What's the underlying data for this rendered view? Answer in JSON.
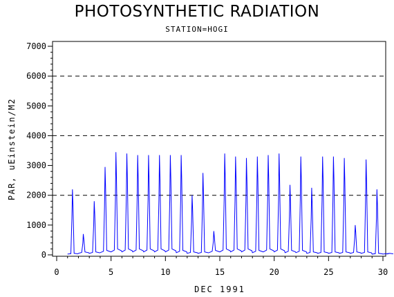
{
  "header": {
    "title": "PHOTOSYNTHETIC RADIATION",
    "subtitle": "STATION=HOGI"
  },
  "chart_data": {
    "type": "line",
    "title": "PHOTOSYNTHETIC RADIATION",
    "subtitle": "STATION=HOGI",
    "xlabel": "DEC 1991",
    "ylabel": "PAR, uEinstein/M2",
    "xlim": [
      0,
      30
    ],
    "ylim": [
      0,
      7000
    ],
    "xticks": [
      0,
      5,
      10,
      15,
      20,
      25,
      30
    ],
    "yticks": [
      0,
      1000,
      2000,
      3000,
      4000,
      5000,
      6000,
      7000
    ],
    "reference_lines": [
      2000,
      4000,
      6000
    ],
    "line_color": "#0000ff",
    "grid": false,
    "daily_peaks": {
      "day": [
        1,
        2,
        3,
        4,
        5,
        6,
        7,
        8,
        9,
        10,
        11,
        12,
        13,
        14,
        15,
        16,
        17,
        18,
        19,
        20,
        21,
        22,
        23,
        24,
        25,
        26,
        27,
        28,
        29,
        30
      ],
      "peak": [
        2200,
        700,
        1800,
        2950,
        3450,
        3400,
        3350,
        3350,
        3350,
        3350,
        3350,
        2000,
        2750,
        800,
        3400,
        3300,
        3250,
        3300,
        3350,
        3400,
        2350,
        3300,
        2250,
        3300,
        3300,
        3250,
        1000,
        3200,
        2200,
        50
      ],
      "night": [
        50,
        100,
        100,
        150,
        200,
        200,
        200,
        200,
        200,
        200,
        150,
        100,
        100,
        150,
        200,
        200,
        200,
        150,
        200,
        200,
        150,
        150,
        100,
        100,
        100,
        100,
        100,
        100,
        50,
        50
      ]
    }
  }
}
